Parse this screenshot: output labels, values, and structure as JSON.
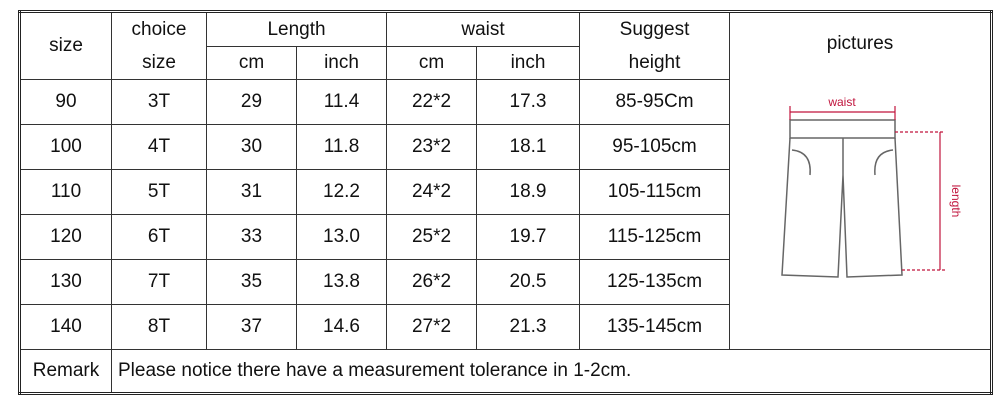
{
  "header": {
    "size": "size",
    "choice_top": "choice",
    "choice_bottom": "size",
    "length": "Length",
    "waist": "waist",
    "cm": "cm",
    "inch": "inch",
    "suggest_top": "Suggest",
    "suggest_bottom": "height",
    "pictures": "pictures"
  },
  "table": {
    "rows": [
      [
        "90",
        "3T",
        "29",
        "11.4",
        "22*2",
        "17.3",
        "85-95Cm"
      ],
      [
        "100",
        "4T",
        "30",
        "11.8",
        "23*2",
        "18.1",
        "95-105cm"
      ],
      [
        "110",
        "5T",
        "31",
        "12.2",
        "24*2",
        "18.9",
        "105-115cm"
      ],
      [
        "120",
        "6T",
        "33",
        "13.0",
        "25*2",
        "19.7",
        "115-125cm"
      ],
      [
        "130",
        "7T",
        "35",
        "13.8",
        "26*2",
        "20.5",
        "125-135cm"
      ],
      [
        "140",
        "8T",
        "37",
        "14.6",
        "27*2",
        "21.3",
        "135-145cm"
      ]
    ]
  },
  "picture": {
    "waist_label": "waist",
    "length_label": "length"
  },
  "remark": {
    "label": "Remark",
    "text": "Please notice there have a measurement tolerance in 1-2cm."
  }
}
